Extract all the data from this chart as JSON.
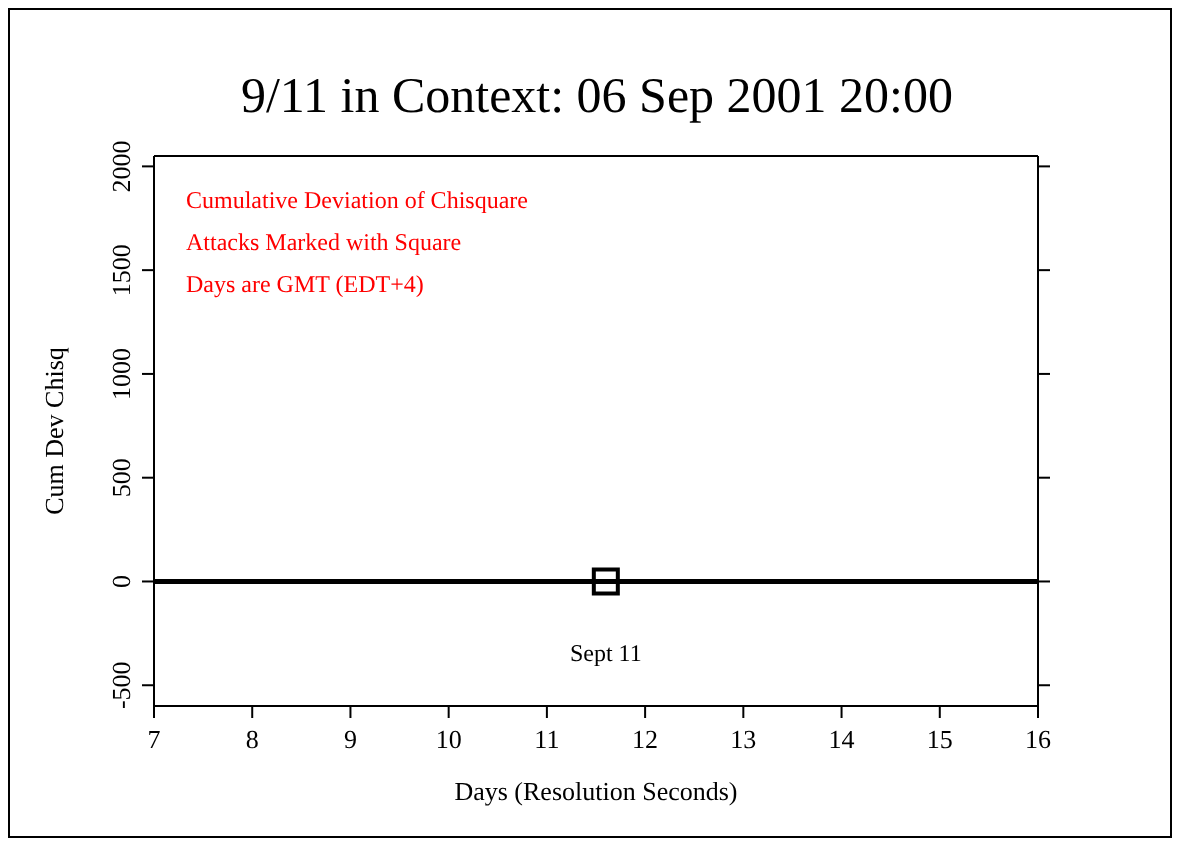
{
  "chart_data": {
    "type": "line",
    "title": "9/11 in Context: 06 Sep 2001 20:00",
    "xlabel": "Days (Resolution Seconds)",
    "ylabel": "Cum Dev Chisq",
    "annotations": [
      "Cumulative Deviation of Chisquare",
      "Attacks Marked with Square",
      "Days are GMT (EDT+4)"
    ],
    "series": [
      {
        "x": [
          7,
          16
        ],
        "values": [
          0,
          0
        ],
        "color": "#000000",
        "marker": "none"
      },
      {
        "type": "scatter",
        "name": "Sept 11",
        "x": [
          11.6
        ],
        "values": [
          0
        ],
        "color": "#000000",
        "marker": "square"
      }
    ],
    "xlim": [
      7,
      16
    ],
    "xticks": [
      7,
      8,
      9,
      10,
      11,
      12,
      13,
      14,
      15,
      16
    ],
    "ylim": [
      -600,
      2050
    ],
    "yticks": [
      -500,
      0,
      500,
      1000,
      1500,
      2000
    ],
    "grid": false
  }
}
